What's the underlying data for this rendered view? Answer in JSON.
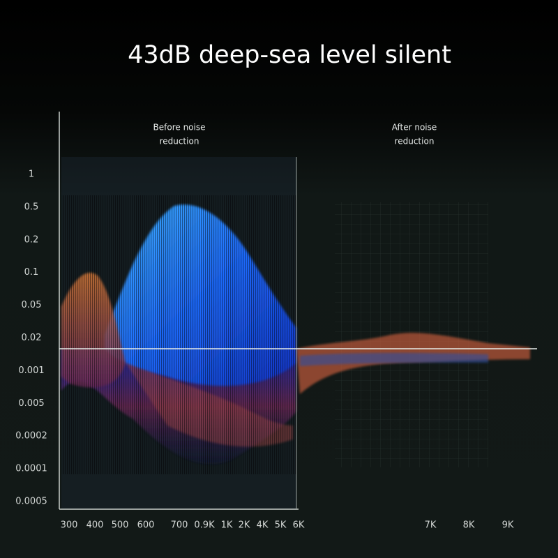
{
  "title": "43dB deep-sea level silent",
  "annotations": {
    "before": [
      "Before noise",
      "reduction"
    ],
    "after": [
      "After noise",
      "reduction"
    ]
  },
  "y_labels": [
    "1",
    "0.5",
    "0.2",
    "0.1",
    "0.05",
    "0.02",
    "0.001",
    "0.005",
    "0.0002",
    "0.0001",
    "0.0005"
  ],
  "x_labels_before": [
    "300",
    "400",
    "500",
    "600",
    "700",
    "0.9K",
    "1K",
    "2K",
    "4K",
    "5K",
    "6K"
  ],
  "x_labels_after": [
    "7K",
    "8K",
    "9K"
  ]
}
